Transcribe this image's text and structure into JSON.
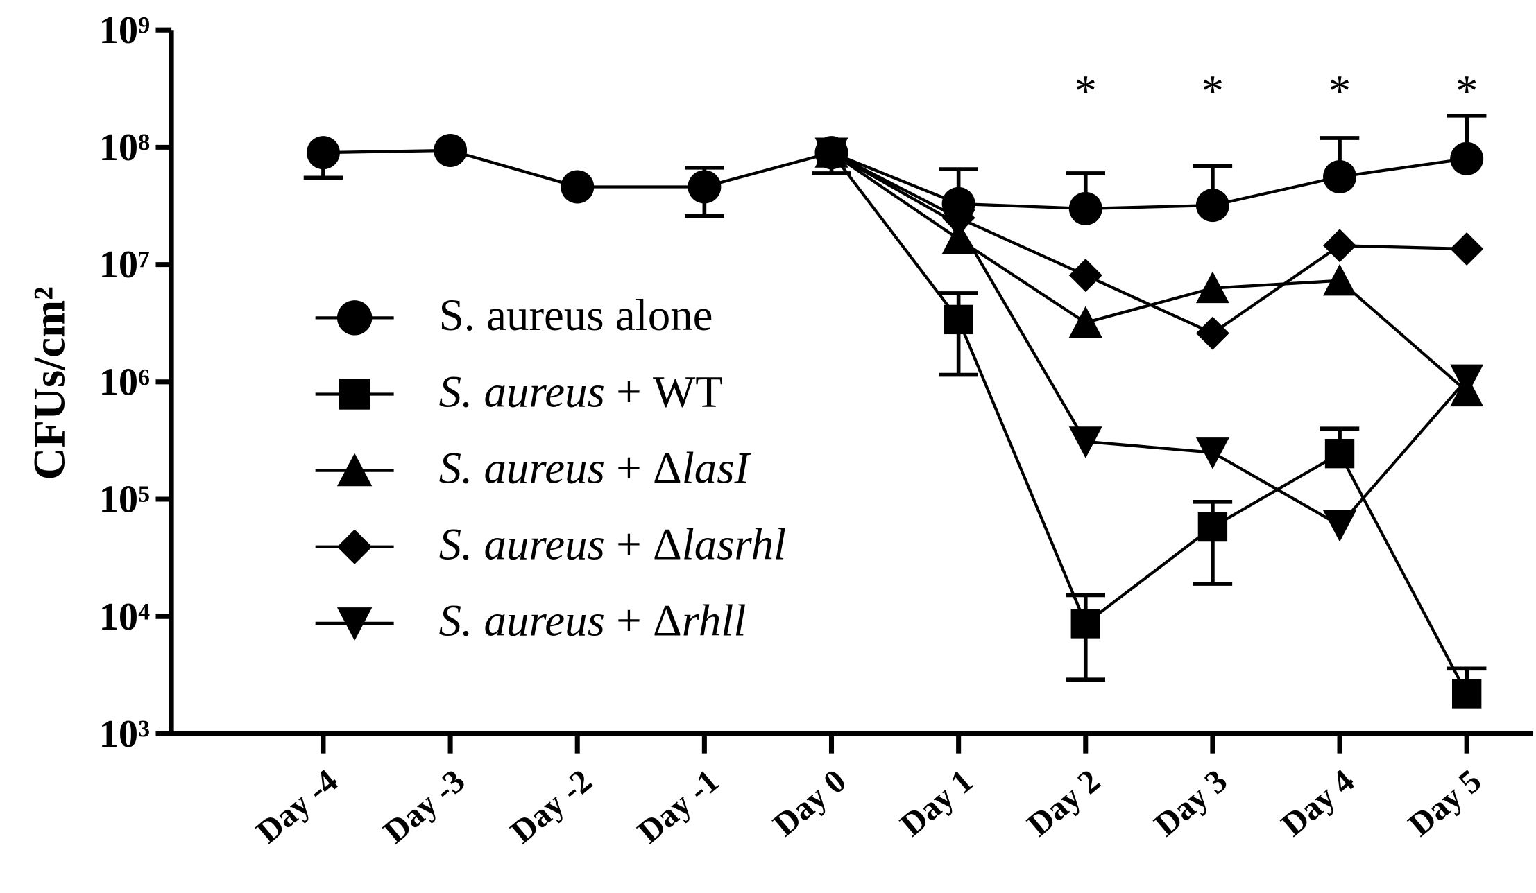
{
  "chart_data": {
    "type": "line",
    "ylabel": "CFUs/cm²",
    "categories": [
      "Day -4",
      "Day -3",
      "Day -2",
      "Day -1",
      "Day 0",
      "Day 1",
      "Day 2",
      "Day 3",
      "Day 4",
      "Day 5"
    ],
    "log_y": true,
    "ylim": [
      1000,
      1000000000
    ],
    "yticks": [
      {
        "value": 1000,
        "label": "10³"
      },
      {
        "value": 10000,
        "label": "10⁴"
      },
      {
        "value": 100000,
        "label": "10⁵"
      },
      {
        "value": 1000000,
        "label": "10⁶"
      },
      {
        "value": 10000000,
        "label": "10⁷"
      },
      {
        "value": 100000000,
        "label": "10⁸"
      },
      {
        "value": 1000000000,
        "label": "10⁹"
      }
    ],
    "legend": "left",
    "color": "#000000",
    "series": [
      {
        "name": "S. aureus alone",
        "marker": "circle",
        "values": [
          90000000,
          94000000,
          46000000,
          46000000,
          90000000,
          33000000,
          30000000,
          32000000,
          56000000,
          80000000
        ],
        "errors_up": [
          null,
          null,
          null,
          21000000,
          null,
          32000000,
          30000000,
          37000000,
          64000000,
          106000000
        ],
        "errors_down": [
          35000000,
          null,
          null,
          20000000,
          null,
          null,
          null,
          null,
          null,
          null
        ]
      },
      {
        "name": "S. aureus + WT",
        "marker": "square",
        "values": [
          null,
          null,
          null,
          null,
          90000000,
          3400000,
          8700,
          58000,
          245000,
          2200
        ],
        "errors_up": [
          null,
          null,
          null,
          null,
          null,
          2300000,
          6500,
          37000,
          155000,
          1400
        ],
        "errors_down": [
          null,
          null,
          null,
          null,
          30000000,
          2250000,
          5800,
          39000,
          null,
          null
        ]
      },
      {
        "name": "S. aureus + ΔlasI",
        "marker": "triangle",
        "values": [
          null,
          null,
          null,
          null,
          90000000,
          16500000,
          3200000,
          6300000,
          7300000,
          830000
        ]
      },
      {
        "name": "S. aureus + Δlasrhl",
        "marker": "diamond",
        "values": [
          null,
          null,
          null,
          null,
          90000000,
          25000000,
          8100000,
          2600000,
          14500000,
          13600000
        ]
      },
      {
        "name": "S. aureus + Δrhll",
        "marker": "triangle-down",
        "values": [
          null,
          null,
          null,
          null,
          90000000,
          22000000,
          310000,
          250000,
          60000,
          1050000
        ]
      }
    ],
    "annotations": [
      {
        "text": "*",
        "category": 6
      },
      {
        "text": "*",
        "category": 7
      },
      {
        "text": "*",
        "category": 8
      },
      {
        "text": "*",
        "category": 9
      }
    ]
  }
}
